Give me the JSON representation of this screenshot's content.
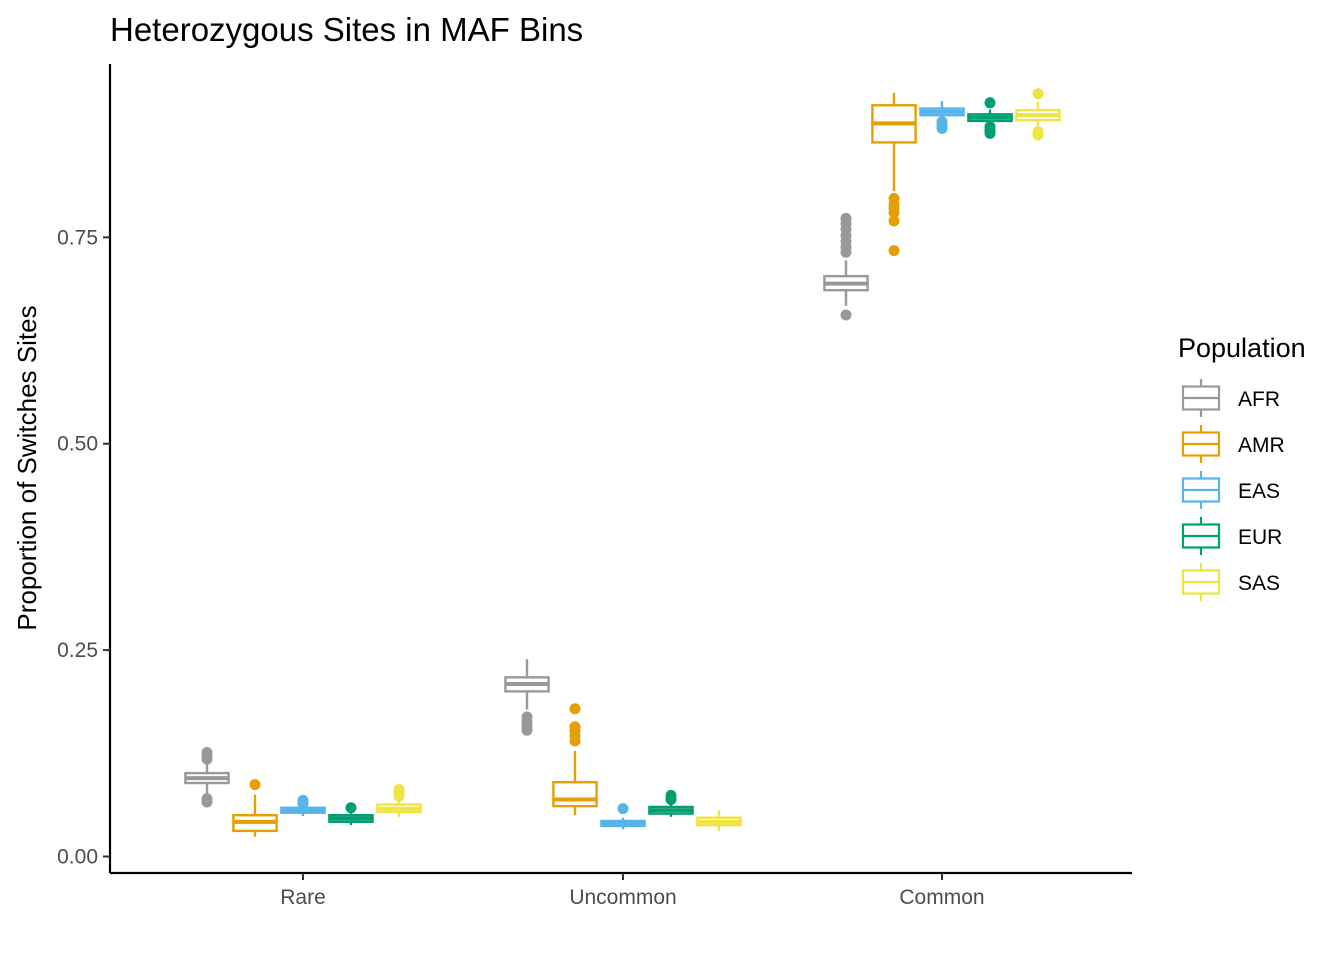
{
  "chart_data": {
    "type": "boxplot",
    "title": "Heterozygous Sites in MAF Bins",
    "xlabel": "",
    "ylabel": "Proportion of Switches Sites",
    "categories": [
      "Rare",
      "Uncommon",
      "Common"
    ],
    "y_ticks": [
      0.0,
      0.25,
      0.5,
      0.75
    ],
    "y_tick_labels": [
      "0.00",
      "0.25",
      "0.50",
      "0.75"
    ],
    "ylim": [
      -0.02,
      0.96
    ],
    "grid": false,
    "legend": {
      "title": "Population",
      "position": "right"
    },
    "series": [
      {
        "name": "AFR",
        "color": "#999999",
        "boxes": [
          {
            "min": 0.072,
            "q1": 0.089,
            "median": 0.095,
            "q3": 0.101,
            "max": 0.114,
            "outliers": [
              0.066,
              0.07,
              0.118,
              0.122,
              0.126
            ]
          },
          {
            "min": 0.178,
            "q1": 0.2,
            "median": 0.209,
            "q3": 0.217,
            "max": 0.239,
            "outliers": [
              0.153,
              0.158,
              0.163,
              0.169
            ]
          },
          {
            "min": 0.667,
            "q1": 0.686,
            "median": 0.694,
            "q3": 0.703,
            "max": 0.722,
            "outliers": [
              0.656,
              0.732,
              0.738,
              0.745,
              0.752,
              0.76,
              0.767,
              0.773
            ]
          }
        ]
      },
      {
        "name": "AMR",
        "color": "#E69F00",
        "boxes": [
          {
            "min": 0.024,
            "q1": 0.031,
            "median": 0.042,
            "q3": 0.05,
            "max": 0.075,
            "outliers": [
              0.087
            ]
          },
          {
            "min": 0.05,
            "q1": 0.061,
            "median": 0.069,
            "q3": 0.09,
            "max": 0.128,
            "outliers": [
              0.14,
              0.146,
              0.152,
              0.157,
              0.179
            ]
          },
          {
            "min": 0.806,
            "q1": 0.865,
            "median": 0.888,
            "q3": 0.91,
            "max": 0.925,
            "outliers": [
              0.734,
              0.77,
              0.78,
              0.785,
              0.79,
              0.797
            ]
          }
        ]
      },
      {
        "name": "EAS",
        "color": "#56B4E9",
        "boxes": [
          {
            "min": 0.049,
            "q1": 0.053,
            "median": 0.056,
            "q3": 0.059,
            "max": 0.063,
            "outliers": [
              0.064,
              0.068
            ]
          },
          {
            "min": 0.033,
            "q1": 0.037,
            "median": 0.04,
            "q3": 0.043,
            "max": 0.047,
            "outliers": [
              0.058
            ]
          },
          {
            "min": 0.893,
            "q1": 0.898,
            "median": 0.902,
            "q3": 0.906,
            "max": 0.915,
            "outliers": [
              0.882,
              0.886,
              0.89
            ]
          }
        ]
      },
      {
        "name": "EUR",
        "color": "#009E73",
        "boxes": [
          {
            "min": 0.038,
            "q1": 0.042,
            "median": 0.046,
            "q3": 0.05,
            "max": 0.054,
            "outliers": [
              0.059
            ]
          },
          {
            "min": 0.048,
            "q1": 0.052,
            "median": 0.056,
            "q3": 0.06,
            "max": 0.064,
            "outliers": [
              0.069,
              0.074
            ]
          },
          {
            "min": 0.887,
            "q1": 0.891,
            "median": 0.895,
            "q3": 0.899,
            "max": 0.905,
            "outliers": [
              0.876,
              0.88,
              0.884,
              0.913
            ]
          }
        ]
      },
      {
        "name": "SAS",
        "color": "#F0E442",
        "boxes": [
          {
            "min": 0.048,
            "q1": 0.054,
            "median": 0.058,
            "q3": 0.063,
            "max": 0.07,
            "outliers": [
              0.073,
              0.077,
              0.081
            ]
          },
          {
            "min": 0.031,
            "q1": 0.038,
            "median": 0.042,
            "q3": 0.047,
            "max": 0.056,
            "outliers": []
          },
          {
            "min": 0.885,
            "q1": 0.892,
            "median": 0.898,
            "q3": 0.904,
            "max": 0.914,
            "outliers": [
              0.874,
              0.878,
              0.924
            ]
          }
        ]
      }
    ]
  }
}
